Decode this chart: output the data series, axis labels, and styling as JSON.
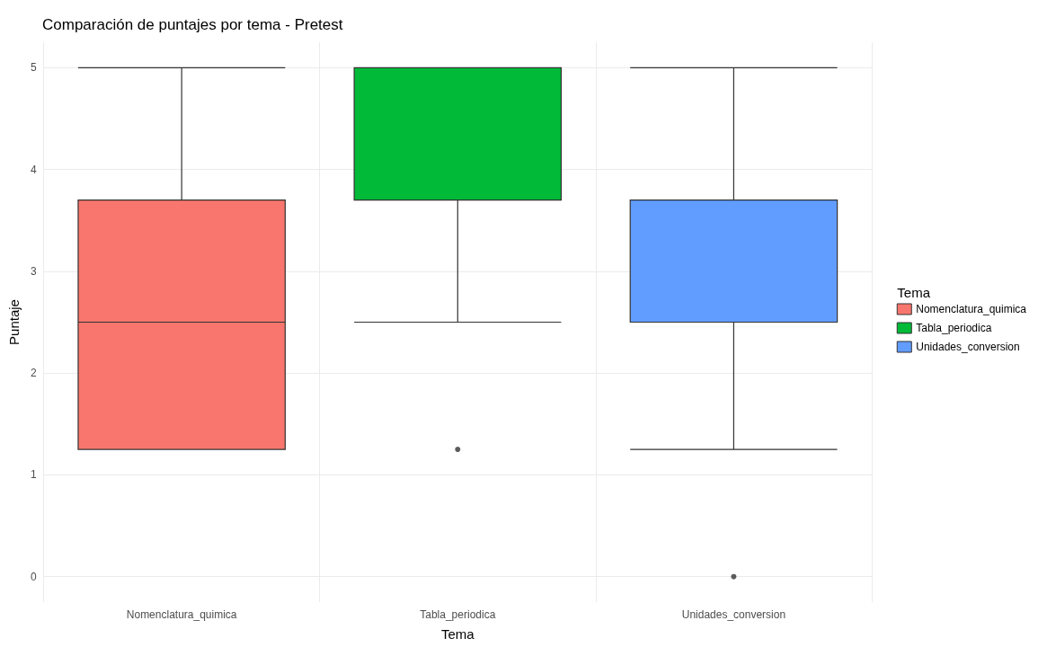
{
  "chart_data": {
    "type": "box",
    "title": "Comparación de puntajes por tema - Pretest",
    "xlabel": "Tema",
    "ylabel": "Puntaje",
    "legend_title": "Tema",
    "categories": [
      "Nomenclatura_quimica",
      "Tabla_periodica",
      "Unidades_conversion"
    ],
    "series": [
      {
        "name": "Nomenclatura_quimica",
        "color": "#f8766d",
        "boxes": [
          {
            "low": 1.25,
            "q1": 1.25,
            "median": 2.5,
            "q3": 3.7,
            "high": 5
          },
          null,
          null
        ]
      },
      {
        "name": "Tabla_periodica",
        "color": "#00ba38",
        "boxes": [
          null,
          {
            "low": 2.5,
            "q1": 3.7,
            "median": 3.7,
            "q3": 5,
            "high": 5,
            "outliers": [
              1.25
            ]
          },
          null
        ]
      },
      {
        "name": "Unidades_conversion",
        "color": "#619cff",
        "boxes": [
          null,
          null,
          {
            "low": 1.25,
            "q1": 2.5,
            "median": 3.7,
            "q3": 3.7,
            "high": 5,
            "outliers": [
              0
            ]
          }
        ]
      }
    ],
    "ylim": [
      -0.25,
      5.25
    ],
    "yticks": [
      0,
      1,
      2,
      3,
      4,
      5
    ],
    "grid": true,
    "legend": "right"
  }
}
